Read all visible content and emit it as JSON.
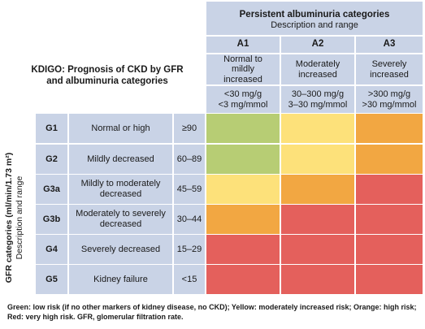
{
  "title": "KDIGO: Prognosis of CKD by GFR\nand albuminuria categories",
  "albuminuria": {
    "heading": "Persistent albuminuria categories",
    "subheading": "Description and range",
    "categories": [
      {
        "code": "A1",
        "desc": "Normal to mildly increased",
        "range": "<30 mg/g\n<3 mg/mmol"
      },
      {
        "code": "A2",
        "desc": "Moderately increased",
        "range": "30–300 mg/g\n3–30 mg/mmol"
      },
      {
        "code": "A3",
        "desc": "Severely increased",
        "range": ">300 mg/g\n>30 mg/mmol"
      }
    ]
  },
  "gfr": {
    "heading": "GFR categories (ml/min/1.73 m²)",
    "subheading": "Description and range",
    "categories": [
      {
        "code": "G1",
        "desc": "Normal or high",
        "range": "≥90"
      },
      {
        "code": "G2",
        "desc": "Mildly decreased",
        "range": "60–89"
      },
      {
        "code": "G3a",
        "desc": "Mildly to moderately decreased",
        "range": "45–59"
      },
      {
        "code": "G3b",
        "desc": "Moderately to severely decreased",
        "range": "30–44"
      },
      {
        "code": "G4",
        "desc": "Severely decreased",
        "range": "15–29"
      },
      {
        "code": "G5",
        "desc": "Kidney failure",
        "range": "<15"
      }
    ]
  },
  "risk_grid": [
    [
      "green",
      "yellow",
      "orange"
    ],
    [
      "green",
      "yellow",
      "orange"
    ],
    [
      "yellow",
      "orange",
      "red"
    ],
    [
      "orange",
      "red",
      "red"
    ],
    [
      "red",
      "red",
      "red"
    ],
    [
      "red",
      "red",
      "red"
    ]
  ],
  "colors": {
    "green": "#b7cd74",
    "yellow": "#fde17a",
    "orange": "#f2a742",
    "red": "#e4605c",
    "header": "#c9d3e6"
  },
  "footnote": "Green: low risk (if no other markers of kidney disease, no CKD); Yellow: moderately increased risk; Orange: high risk; Red: very high risk. GFR, glomerular filtration rate."
}
